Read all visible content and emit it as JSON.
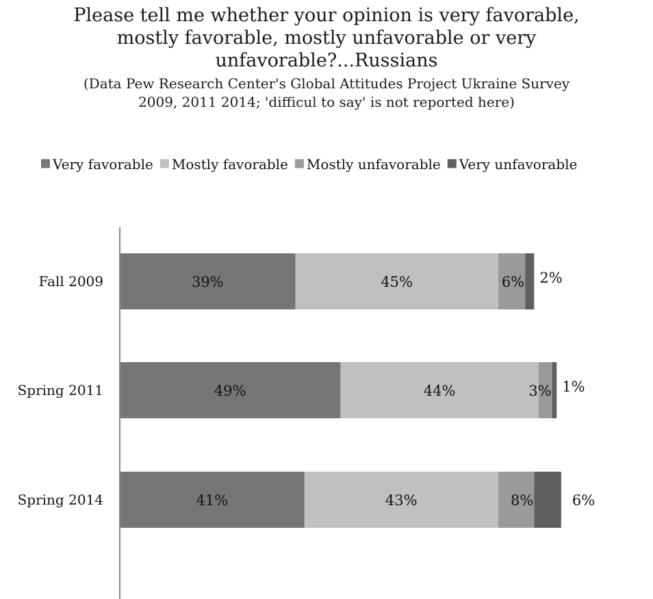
{
  "chart_data": {
    "type": "bar",
    "orientation": "horizontal",
    "stacked": true,
    "title": "Please tell me whether your opinion is very favorable, mostly favorable, mostly unfavorable or very unfavorable?...Russians",
    "subtitle": "(Data  Pew Research Center's Global Attitudes Project Ukraine Survey 2009, 2011 2014; 'difficul to say' is not reported here)",
    "categories": [
      "Fall 2009",
      "Spring 2011",
      "Spring 2014"
    ],
    "series": [
      {
        "name": "Very favorable",
        "values": [
          39,
          49,
          41
        ],
        "labels": [
          "39%",
          "49%",
          "41%"
        ],
        "color": "#767676"
      },
      {
        "name": "Mostly favorable",
        "values": [
          45,
          44,
          43
        ],
        "labels": [
          "45%",
          "44%",
          "43%"
        ],
        "color": "#c0c0c0"
      },
      {
        "name": "Mostly unfavorable",
        "values": [
          6,
          3,
          8
        ],
        "labels": [
          "6%",
          "3%",
          "8%"
        ],
        "color": "#9a9a9a"
      },
      {
        "name": "Very unfavorable",
        "values": [
          2,
          1,
          6
        ],
        "labels": [
          "2%",
          "1%",
          "6%"
        ],
        "color": "#5f5f5f"
      }
    ],
    "xlim": [
      0,
      100
    ],
    "legend_position": "top",
    "grid": false
  }
}
